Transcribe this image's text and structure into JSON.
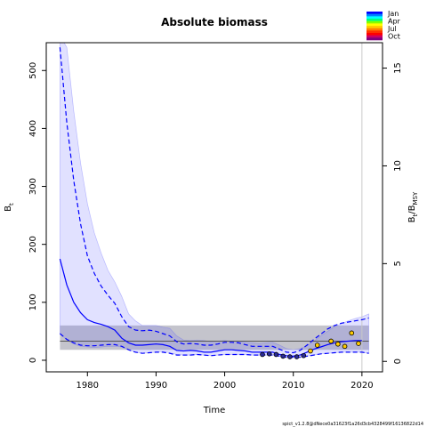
{
  "chart_data": {
    "type": "line",
    "title": "Absolute biomass",
    "xlabel": "Time",
    "ylabel_left": "B",
    "ylabel_left_sub": "t",
    "ylabel_right": "B",
    "ylabel_right_sub": "t",
    "ylabel_right_div": "/B",
    "ylabel_right_div_sub": "MSY",
    "xlim": [
      1974,
      2023
    ],
    "ylim": [
      -20,
      548
    ],
    "right_ylim": [
      -0.535,
      16.3
    ],
    "x_ticks": [
      1980,
      1990,
      2000,
      2010,
      2020
    ],
    "x_tick_labels": [
      "1980",
      "1990",
      "2000",
      "2010",
      "2020"
    ],
    "y_ticks": [
      0,
      100,
      200,
      300,
      400,
      500
    ],
    "y_tick_labels": [
      "0",
      "100",
      "200",
      "300",
      "400",
      "500"
    ],
    "right_ticks": [
      0,
      5,
      10,
      15
    ],
    "right_tick_labels": [
      "0",
      "5",
      "10",
      "15"
    ],
    "ci_band": {
      "x": [
        1976,
        1977,
        1978,
        1979,
        1980,
        1981,
        1982,
        1983,
        1984,
        1985,
        1986,
        1987,
        1988,
        1989,
        1990,
        1991,
        1992,
        1993,
        1994,
        1995,
        1996,
        1997,
        1998,
        1999,
        2000,
        2001,
        2002,
        2003,
        2004,
        2005,
        2006,
        2007,
        2008,
        2009,
        2010,
        2011,
        2012,
        2013,
        2014,
        2015,
        2016,
        2017,
        2018,
        2019,
        2020,
        2021
      ],
      "upper": [
        560,
        540,
        430,
        340,
        270,
        220,
        185,
        155,
        135,
        110,
        80,
        68,
        60,
        60,
        60,
        57,
        55,
        42,
        35,
        34,
        35,
        34,
        32,
        33,
        34,
        33,
        32,
        31,
        30,
        29,
        30,
        31,
        26,
        20,
        18,
        20,
        25,
        33,
        42,
        50,
        58,
        63,
        68,
        72,
        75,
        80
      ],
      "lower": [
        46,
        35,
        28,
        24,
        23,
        22,
        23,
        24,
        24,
        23,
        18,
        14,
        12,
        13,
        14,
        15,
        13,
        10,
        9,
        9,
        10,
        9,
        8,
        9,
        10,
        10,
        10,
        10,
        9,
        9,
        9,
        9,
        7,
        5,
        5,
        5,
        7,
        9,
        11,
        12,
        13,
        14,
        14,
        14,
        14,
        12
      ]
    },
    "reference_band": {
      "lower": 18,
      "upper": 60,
      "line": 33
    },
    "series": [
      {
        "role": "median",
        "x": [
          1976,
          1977,
          1978,
          1979,
          1980,
          1981,
          1982,
          1983,
          1984,
          1985,
          1986,
          1987,
          1988,
          1989,
          1990,
          1991,
          1992,
          1993,
          1994,
          1995,
          1996,
          1997,
          1998,
          1999,
          2000,
          2001,
          2002,
          2003,
          2004,
          2005,
          2006,
          2007,
          2008,
          2009,
          2010,
          2011,
          2012,
          2013,
          2014,
          2015,
          2016,
          2017,
          2018,
          2019,
          2020
        ],
        "values": [
          175,
          130,
          100,
          82,
          70,
          65,
          62,
          58,
          52,
          38,
          30,
          26,
          26,
          27,
          28,
          27,
          24,
          17,
          16,
          17,
          16,
          14,
          14,
          16,
          18,
          18,
          17,
          16,
          14,
          14,
          14,
          14,
          10,
          8,
          7,
          9,
          14,
          19,
          23,
          27,
          30,
          32,
          33,
          34,
          34
        ]
      },
      {
        "role": "ci-upper",
        "x": [
          1976,
          1977,
          1978,
          1979,
          1980,
          1981,
          1982,
          1983,
          1984,
          1985,
          1986,
          1987,
          1988,
          1989,
          1990,
          1991,
          1992,
          1993,
          1994,
          1995,
          1996,
          1997,
          1998,
          1999,
          2000,
          2001,
          2002,
          2003,
          2004,
          2005,
          2006,
          2007,
          2008,
          2009,
          2010,
          2011,
          2012,
          2013,
          2014,
          2015,
          2016,
          2017,
          2018,
          2019,
          2020,
          2021
        ],
        "values": [
          540,
          410,
          310,
          235,
          180,
          150,
          128,
          112,
          98,
          75,
          58,
          52,
          51,
          52,
          50,
          46,
          42,
          32,
          28,
          29,
          28,
          26,
          26,
          28,
          31,
          31,
          30,
          27,
          24,
          24,
          24,
          24,
          19,
          14,
          13,
          17,
          26,
          36,
          45,
          54,
          60,
          64,
          66,
          68,
          70,
          73
        ]
      },
      {
        "role": "ci-lower",
        "x": [
          1976,
          1977,
          1978,
          1979,
          1980,
          1981,
          1982,
          1983,
          1984,
          1985,
          1986,
          1987,
          1988,
          1989,
          1990,
          1991,
          1992,
          1993,
          1994,
          1995,
          1996,
          1997,
          1998,
          1999,
          2000,
          2001,
          2002,
          2003,
          2004,
          2005,
          2006,
          2007,
          2008,
          2009,
          2010,
          2011,
          2012,
          2013,
          2014,
          2015,
          2016,
          2017,
          2018,
          2019,
          2020,
          2021
        ],
        "values": [
          46,
          36,
          30,
          26,
          25,
          25,
          26,
          27,
          27,
          24,
          18,
          14,
          12,
          13,
          14,
          14,
          12,
          9,
          9,
          9,
          10,
          9,
          8,
          9,
          10,
          10,
          10,
          10,
          9,
          9,
          9,
          9,
          7,
          5,
          5,
          5,
          7,
          9,
          11,
          12,
          13,
          14,
          14,
          14,
          14,
          12
        ]
      }
    ],
    "observations": [
      {
        "x": 2005.5,
        "y": 10,
        "color": "#2b2b99"
      },
      {
        "x": 2006.5,
        "y": 11,
        "color": "#2b2b99"
      },
      {
        "x": 2007.5,
        "y": 10,
        "color": "#2b2b99"
      },
      {
        "x": 2008.5,
        "y": 7,
        "color": "#2b2b99"
      },
      {
        "x": 2009.5,
        "y": 6,
        "color": "#2b2b99"
      },
      {
        "x": 2010.5,
        "y": 6,
        "color": "#2b2b99"
      },
      {
        "x": 2011.5,
        "y": 8,
        "color": "#2b2b99"
      },
      {
        "x": 2012.5,
        "y": 16,
        "color": "#ffcc00"
      },
      {
        "x": 2013.5,
        "y": 26,
        "color": "#ffcc00"
      },
      {
        "x": 2015.5,
        "y": 33,
        "color": "#ffcc00"
      },
      {
        "x": 2016.5,
        "y": 28,
        "color": "#ffcc00"
      },
      {
        "x": 2017.5,
        "y": 24,
        "color": "#ffcc00"
      },
      {
        "x": 2018.5,
        "y": 47,
        "color": "#ffcc00"
      },
      {
        "x": 2019.5,
        "y": 29,
        "color": "#ffcc00"
      }
    ],
    "vline_x": 2020,
    "grid": false,
    "legend_position": "top-right",
    "legend": {
      "labels": [
        "Jan",
        "Apr",
        "Jul",
        "Oct"
      ],
      "colors": [
        "#0000ff",
        "#0080ff",
        "#00ffff",
        "#00ff80",
        "#80ff00",
        "#ffff00",
        "#ffcc00",
        "#ff8000",
        "#ff3300",
        "#ff0000",
        "#cc0066",
        "#800080"
      ]
    },
    "footer": "spict_v1.2.8@dNece0a31623f1a26d3cb4328499f16136822d14"
  }
}
